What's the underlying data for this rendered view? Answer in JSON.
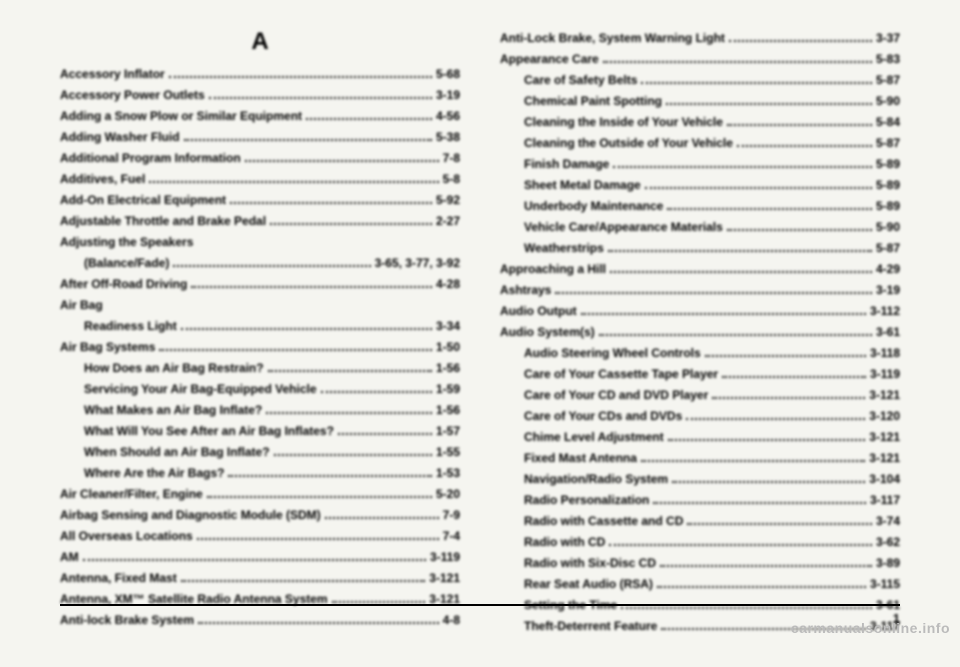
{
  "section_header": "A",
  "page_number": "1",
  "watermark": "carmanualsonline.info",
  "left": [
    {
      "label": "Accessory Inflator",
      "page": "5-68",
      "sub": false
    },
    {
      "label": "Accessory Power Outlets",
      "page": "3-19",
      "sub": false
    },
    {
      "label": "Adding a Snow Plow or Similar Equipment",
      "page": "4-56",
      "sub": false
    },
    {
      "label": "Adding Washer Fluid",
      "page": "5-38",
      "sub": false
    },
    {
      "label": "Additional Program Information",
      "page": "7-8",
      "sub": false
    },
    {
      "label": "Additives, Fuel",
      "page": "5-8",
      "sub": false
    },
    {
      "label": "Add-On Electrical Equipment",
      "page": "5-92",
      "sub": false
    },
    {
      "label": "Adjustable Throttle and Brake Pedal",
      "page": "2-27",
      "sub": false
    },
    {
      "label": "Adjusting the Speakers",
      "page": "",
      "sub": false,
      "nodots": true
    },
    {
      "label": "(Balance/Fade)",
      "page": "3-65, 3-77, 3-92",
      "sub": true
    },
    {
      "label": "After Off-Road Driving",
      "page": "4-28",
      "sub": false
    },
    {
      "label": "Air Bag",
      "page": "",
      "sub": false,
      "nodots": true
    },
    {
      "label": "Readiness Light",
      "page": "3-34",
      "sub": true
    },
    {
      "label": "Air Bag Systems",
      "page": "1-50",
      "sub": false
    },
    {
      "label": "How Does an Air Bag Restrain?",
      "page": "1-56",
      "sub": true
    },
    {
      "label": "Servicing Your Air Bag-Equipped Vehicle",
      "page": "1-59",
      "sub": true
    },
    {
      "label": "What Makes an Air Bag Inflate?",
      "page": "1-56",
      "sub": true
    },
    {
      "label": "What Will You See After an Air Bag Inflates?",
      "page": "1-57",
      "sub": true
    },
    {
      "label": "When Should an Air Bag Inflate?",
      "page": "1-55",
      "sub": true
    },
    {
      "label": "Where Are the Air Bags?",
      "page": "1-53",
      "sub": true
    },
    {
      "label": "Air Cleaner/Filter, Engine",
      "page": "5-20",
      "sub": false
    },
    {
      "label": "Airbag Sensing and Diagnostic Module (SDM)",
      "page": "7-9",
      "sub": false
    },
    {
      "label": "All Overseas Locations",
      "page": "7-4",
      "sub": false
    },
    {
      "label": "AM",
      "page": "3-119",
      "sub": false
    },
    {
      "label": "Antenna, Fixed Mast",
      "page": "3-121",
      "sub": false
    },
    {
      "label": "Antenna, XM™ Satellite Radio Antenna System",
      "page": "3-121",
      "sub": false
    },
    {
      "label": "Anti-lock Brake System",
      "page": "4-8",
      "sub": false
    }
  ],
  "right": [
    {
      "label": "Anti-Lock Brake, System Warning Light",
      "page": "3-37",
      "sub": false
    },
    {
      "label": "Appearance Care",
      "page": "5-83",
      "sub": false
    },
    {
      "label": "Care of Safety Belts",
      "page": "5-87",
      "sub": true
    },
    {
      "label": "Chemical Paint Spotting",
      "page": "5-90",
      "sub": true
    },
    {
      "label": "Cleaning the Inside of Your Vehicle",
      "page": "5-84",
      "sub": true
    },
    {
      "label": "Cleaning the Outside of Your Vehicle",
      "page": "5-87",
      "sub": true
    },
    {
      "label": "Finish Damage",
      "page": "5-89",
      "sub": true
    },
    {
      "label": "Sheet Metal Damage",
      "page": "5-89",
      "sub": true
    },
    {
      "label": "Underbody Maintenance",
      "page": "5-89",
      "sub": true
    },
    {
      "label": "Vehicle Care/Appearance Materials",
      "page": "5-90",
      "sub": true
    },
    {
      "label": "Weatherstrips",
      "page": "5-87",
      "sub": true
    },
    {
      "label": "Approaching a Hill",
      "page": "4-29",
      "sub": false
    },
    {
      "label": "Ashtrays",
      "page": "3-19",
      "sub": false
    },
    {
      "label": "Audio Output",
      "page": "3-112",
      "sub": false
    },
    {
      "label": "Audio System(s)",
      "page": "3-61",
      "sub": false
    },
    {
      "label": "Audio Steering Wheel Controls",
      "page": "3-118",
      "sub": true
    },
    {
      "label": "Care of Your Cassette Tape Player",
      "page": "3-119",
      "sub": true
    },
    {
      "label": "Care of Your CD and DVD Player",
      "page": "3-121",
      "sub": true
    },
    {
      "label": "Care of Your CDs and DVDs",
      "page": "3-120",
      "sub": true
    },
    {
      "label": "Chime Level Adjustment",
      "page": "3-121",
      "sub": true
    },
    {
      "label": "Fixed Mast Antenna",
      "page": "3-121",
      "sub": true
    },
    {
      "label": "Navigation/Radio System",
      "page": "3-104",
      "sub": true
    },
    {
      "label": "Radio Personalization",
      "page": "3-117",
      "sub": true
    },
    {
      "label": "Radio with Cassette and CD",
      "page": "3-74",
      "sub": true
    },
    {
      "label": "Radio with CD",
      "page": "3-62",
      "sub": true
    },
    {
      "label": "Radio with Six-Disc CD",
      "page": "3-89",
      "sub": true
    },
    {
      "label": "Rear Seat Audio (RSA)",
      "page": "3-115",
      "sub": true
    },
    {
      "label": "Setting the Time",
      "page": "3-61",
      "sub": true
    },
    {
      "label": "Theft-Deterrent Feature",
      "page": "3-117",
      "sub": true
    }
  ]
}
